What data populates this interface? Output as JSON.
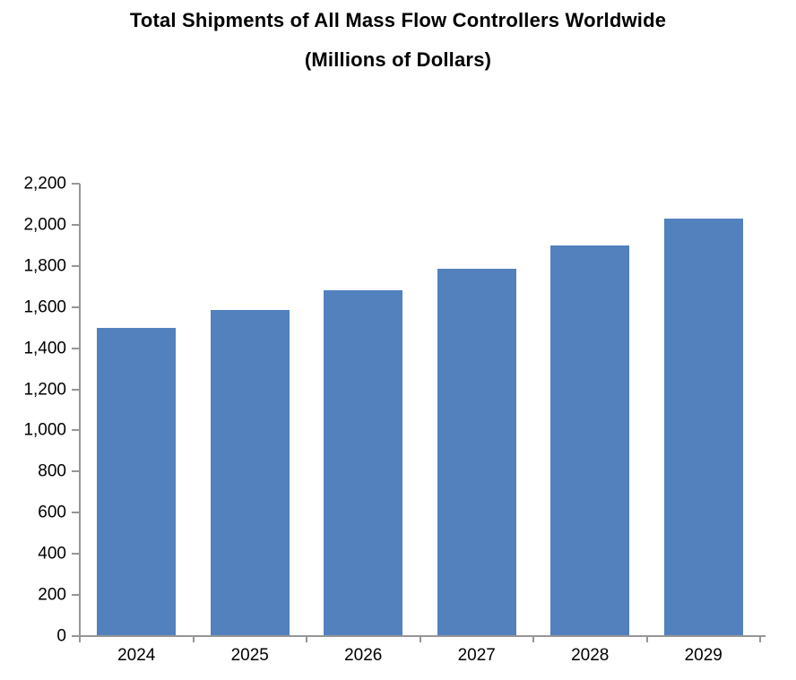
{
  "title": {
    "line1": "Total Shipments of All Mass Flow Controllers Worldwide",
    "line2": "(Millions of Dollars)"
  },
  "chart_data": {
    "type": "bar",
    "title": "Total Shipments of All Mass Flow Controllers Worldwide (Millions of Dollars)",
    "categories": [
      "2024",
      "2025",
      "2026",
      "2027",
      "2028",
      "2029"
    ],
    "values": [
      1500,
      1585,
      1680,
      1785,
      1900,
      2030
    ],
    "xlabel": "",
    "ylabel": "",
    "ylim": [
      0,
      2200
    ],
    "ytick_step": 200,
    "ytick_labels": [
      "0",
      "200",
      "400",
      "600",
      "800",
      "1,000",
      "1,200",
      "1,400",
      "1,600",
      "1,800",
      "2,000",
      "2,200"
    ],
    "grid": false,
    "legend": false,
    "bar_color": "#5281BE",
    "axis_color": "#969696",
    "text_color": "#000000"
  }
}
